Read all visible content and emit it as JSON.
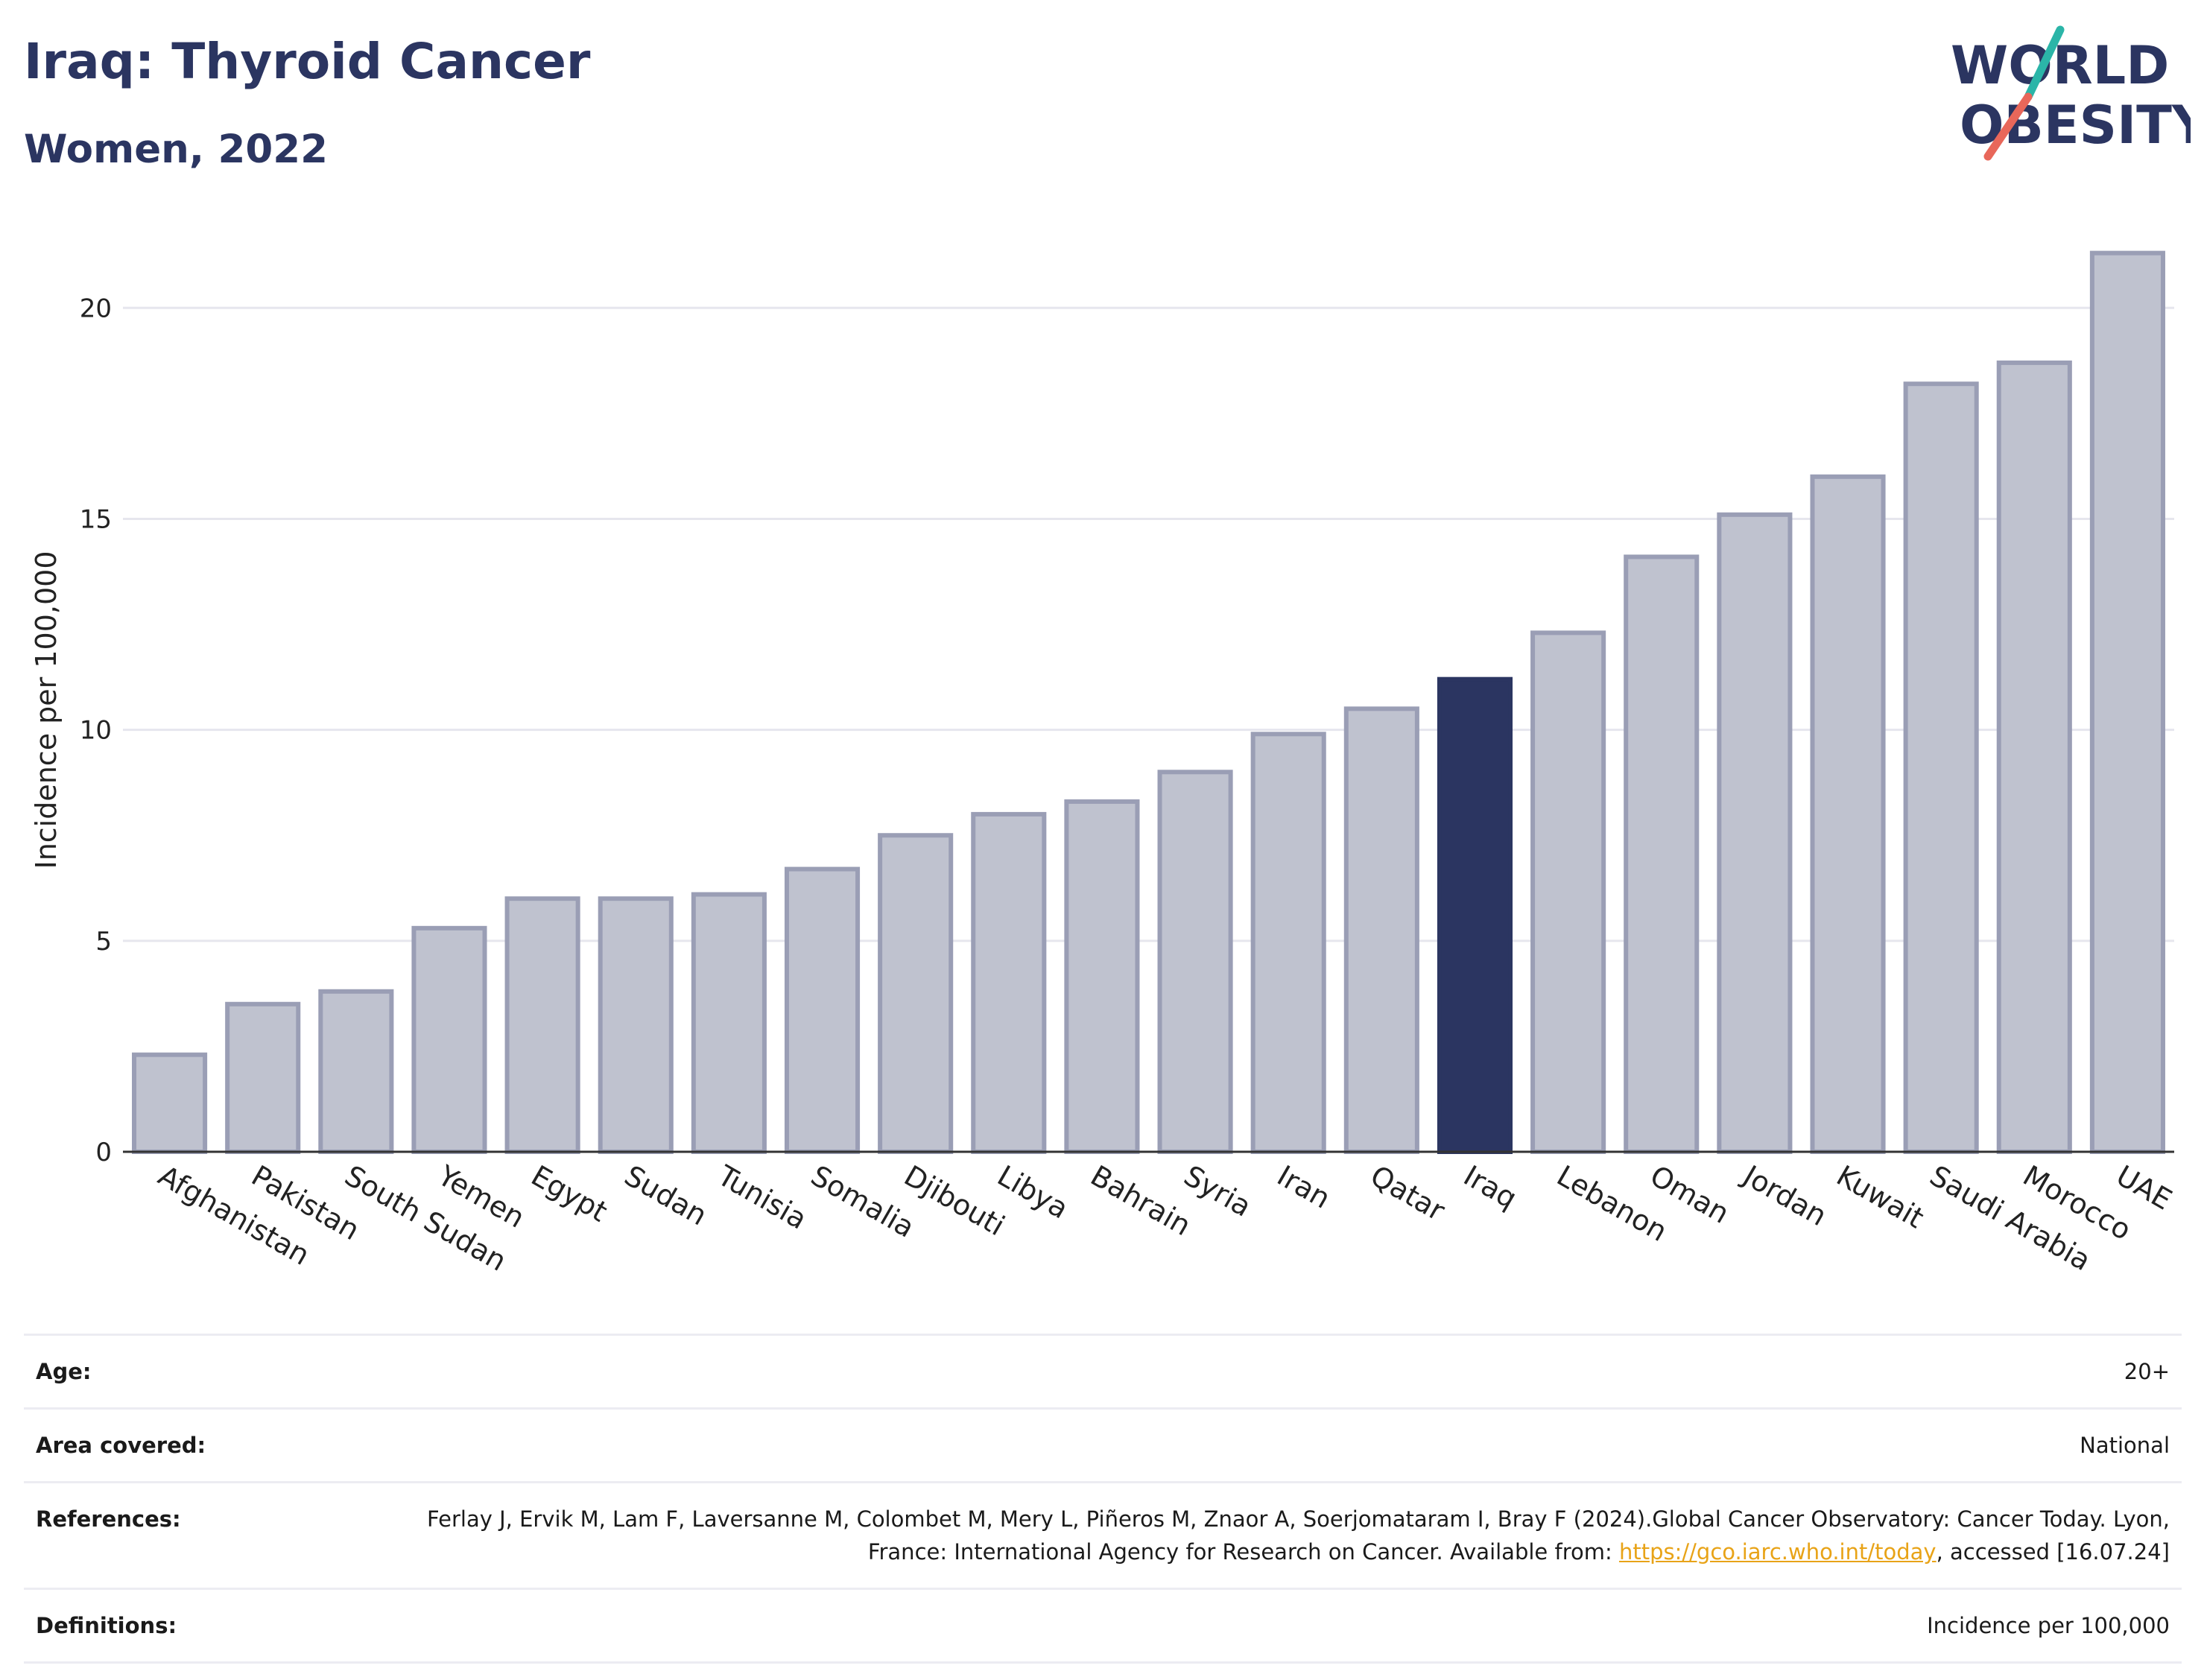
{
  "header": {
    "title": "Iraq: Thyroid Cancer",
    "subtitle": "Women, 2022"
  },
  "logo": {
    "line1": "WORLD",
    "line2": "OBESITY",
    "colors": {
      "text": "#2b3561",
      "slash_red": "#e8675a",
      "slash_teal": "#2bb5a8"
    }
  },
  "chart_data": {
    "type": "bar",
    "categories": [
      "Afghanistan",
      "Pakistan",
      "South Sudan",
      "Yemen",
      "Egypt",
      "Sudan",
      "Tunisia",
      "Somalia",
      "Djibouti",
      "Libya",
      "Bahrain",
      "Syria",
      "Iran",
      "Qatar",
      "Iraq",
      "Lebanon",
      "Oman",
      "Jordan",
      "Kuwait",
      "Saudi Arabia",
      "Morocco",
      "UAE"
    ],
    "values": [
      2.3,
      3.5,
      3.8,
      5.3,
      6.0,
      6.0,
      6.1,
      6.7,
      7.5,
      8.0,
      8.3,
      9.0,
      9.9,
      10.5,
      11.2,
      12.3,
      14.1,
      15.1,
      16.0,
      18.2,
      18.7,
      21.3
    ],
    "highlight": "Iraq",
    "ylabel": "Incidence per 100,000",
    "xlabel": "",
    "ylim": [
      0,
      22
    ],
    "yticks": [
      0,
      5,
      10,
      15,
      20
    ],
    "grid": true,
    "colors": {
      "bar_fill": "#bfc2cf",
      "bar_stroke": "#9a9eb5",
      "highlight_fill": "#2b3561",
      "grid": "#e6e6ee"
    }
  },
  "table": {
    "rows": [
      {
        "key": "Age:",
        "value": "20+"
      },
      {
        "key": "Area covered:",
        "value": "National"
      },
      {
        "key": "References:",
        "value_before": "Ferlay J, Ervik M, Lam F, Laversanne M, Colombet M, Mery L, Piñeros M, Znaor A, Soerjomataram I, Bray F (2024).Global Cancer Observatory: Cancer Today. Lyon, France: International Agency for Research on Cancer. Available from: ",
        "link": "https://gco.iarc.who.int/today",
        "value_after": ", accessed [16.07.24]"
      },
      {
        "key": "Definitions:",
        "value": "Incidence per 100,000"
      }
    ]
  }
}
